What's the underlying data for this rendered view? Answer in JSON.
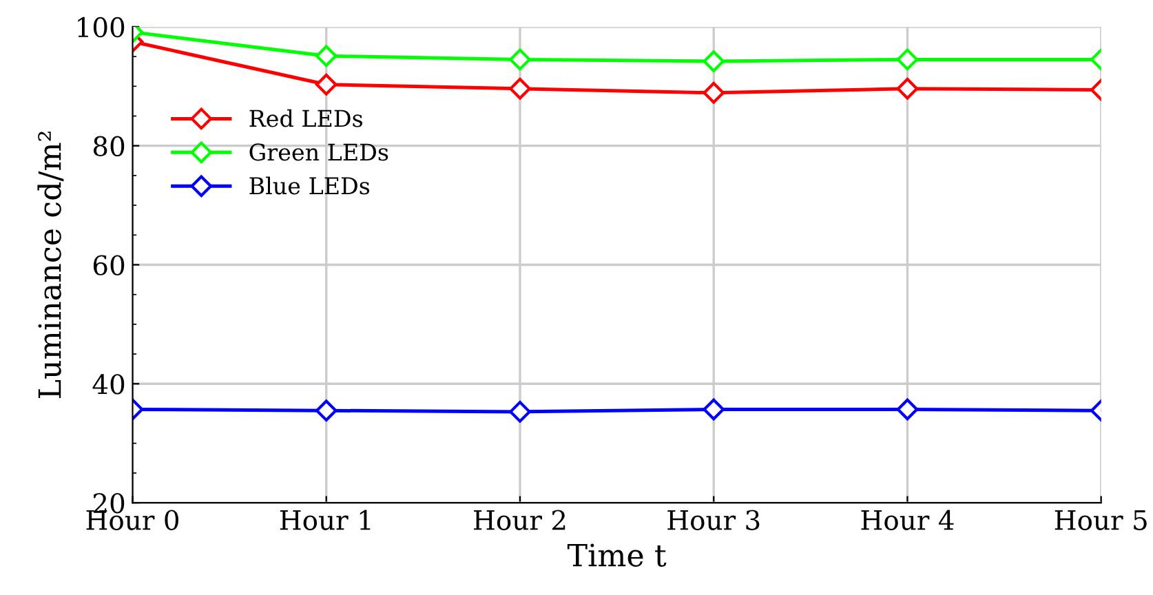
{
  "chart_data": {
    "type": "line",
    "xlabel": "Time t",
    "ylabel": "Luminance cd/m²",
    "categories": [
      "Hour 0",
      "Hour 1",
      "Hour 2",
      "Hour 3",
      "Hour 4",
      "Hour 5"
    ],
    "series": [
      {
        "name": "Red LEDs",
        "color": "#ff0000",
        "values": [
          97.5,
          90.3,
          89.6,
          88.9,
          89.6,
          89.4
        ]
      },
      {
        "name": "Green LEDs",
        "color": "#00ff00",
        "values": [
          99.1,
          95.1,
          94.5,
          94.2,
          94.5,
          94.5
        ]
      },
      {
        "name": "Blue LEDs",
        "color": "#0000ff",
        "values": [
          35.7,
          35.5,
          35.3,
          35.7,
          35.7,
          35.5
        ]
      }
    ],
    "ylim": [
      20,
      100
    ],
    "yticks": [
      20,
      40,
      60,
      80,
      100
    ],
    "grid": true,
    "legend": "top left",
    "marker": "diamond",
    "line_style": "solid"
  }
}
